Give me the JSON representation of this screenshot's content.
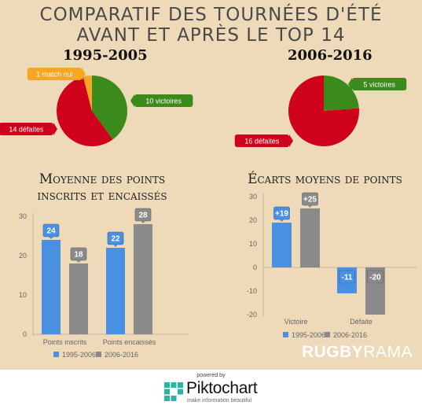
{
  "title_line1": "COMPARATIF DES TOURNÉES D'ÉTÉ",
  "title_line2": "AVANT ET APRÈS LE TOP 14",
  "brand": {
    "bold": "RUGBY",
    "light": "RAMA"
  },
  "footer": {
    "powered_by": "powered by",
    "name": "Piktochart",
    "tagline": "make information beautiful"
  },
  "colors": {
    "background": "#eed9b9",
    "green": "#3a8a1c",
    "red": "#d0021b",
    "orange": "#f5a623",
    "blue": "#4a90e2",
    "gray": "#8a8a8a"
  },
  "chart_data": [
    {
      "type": "pie",
      "title": "1995-2005",
      "slices": [
        {
          "label": "10 victoires",
          "value": 10,
          "color": "#3a8a1c"
        },
        {
          "label": "14 défaites",
          "value": 14,
          "color": "#d0021b"
        },
        {
          "label": "1 match nul",
          "value": 1,
          "color": "#f5a623"
        }
      ]
    },
    {
      "type": "pie",
      "title": "2006-2016",
      "slices": [
        {
          "label": "5 victoires",
          "value": 5,
          "color": "#3a8a1c"
        },
        {
          "label": "16 défaites",
          "value": 16,
          "color": "#d0021b"
        }
      ]
    },
    {
      "type": "bar",
      "title_line1": "Moyenne des points",
      "title_line2": "inscrits et encaissés",
      "categories": [
        "Points inscrits",
        "Points encaissés"
      ],
      "series": [
        {
          "name": "1995-2006",
          "values": [
            24,
            22
          ],
          "color": "#4a90e2"
        },
        {
          "name": "2006-2016",
          "values": [
            18,
            28
          ],
          "color": "#8a8a8a"
        }
      ],
      "value_labels": [
        [
          "24",
          "22"
        ],
        [
          "18",
          "28"
        ]
      ],
      "ylim": [
        0,
        30
      ],
      "yticks": [
        0,
        10,
        20,
        30
      ],
      "legend": "bottom"
    },
    {
      "type": "bar",
      "title": "Écarts moyens de points",
      "categories": [
        "Victoire",
        "Défaite"
      ],
      "series": [
        {
          "name": "1995-2006",
          "values": [
            19,
            -11
          ],
          "color": "#4a90e2"
        },
        {
          "name": "2006-2016",
          "values": [
            25,
            -20
          ],
          "color": "#8a8a8a"
        }
      ],
      "value_labels": [
        [
          "+19",
          "-11"
        ],
        [
          "+25",
          "-20"
        ]
      ],
      "ylim": [
        -20,
        30
      ],
      "yticks": [
        30,
        20,
        10,
        0,
        -10,
        -20
      ],
      "legend": "bottom"
    }
  ]
}
